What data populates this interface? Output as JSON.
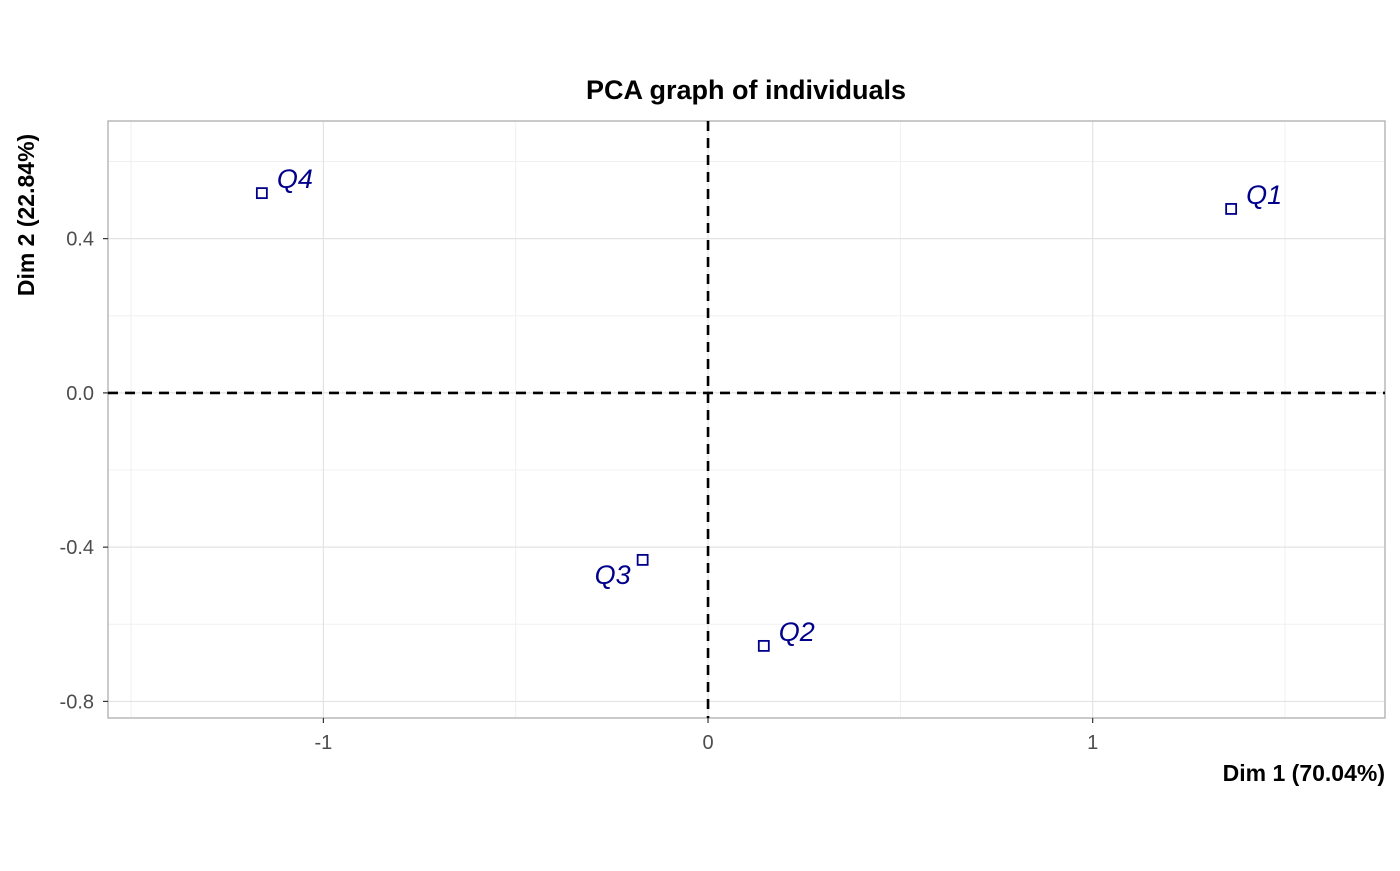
{
  "chart_data": {
    "type": "scatter",
    "title": "PCA graph of individuals",
    "xlabel": "Dim 1 (70.04%)",
    "ylabel": "Dim 2 (22.84%)",
    "xlim": [
      -1.56,
      1.76
    ],
    "ylim": [
      -0.843,
      0.705
    ],
    "x_ticks": [
      {
        "value": -1,
        "label": "-1"
      },
      {
        "value": 0,
        "label": "0"
      },
      {
        "value": 1,
        "label": "1"
      }
    ],
    "y_ticks": [
      {
        "value": 0.4,
        "label": "0.4"
      },
      {
        "value": 0.0,
        "label": "0.0"
      },
      {
        "value": -0.4,
        "label": "-0.4"
      },
      {
        "value": -0.8,
        "label": "-0.8"
      }
    ],
    "x_minor_ticks": [
      -1.5,
      -0.5,
      0.5,
      1.5
    ],
    "y_minor_ticks": [
      0.6,
      0.2,
      -0.2,
      -0.6
    ],
    "grid": true,
    "reference_lines": {
      "x": 0,
      "y": 0,
      "style": "dashed"
    },
    "marker": "open-square",
    "point_color": "#00008B",
    "points": [
      {
        "label": "Q1",
        "x": 1.36,
        "y": 0.477,
        "label_side": "right"
      },
      {
        "label": "Q2",
        "x": 0.145,
        "y": -0.656,
        "label_side": "right"
      },
      {
        "label": "Q3",
        "x": -0.17,
        "y": -0.433,
        "label_side": "left"
      },
      {
        "label": "Q4",
        "x": -1.16,
        "y": 0.518,
        "label_side": "right"
      }
    ]
  }
}
